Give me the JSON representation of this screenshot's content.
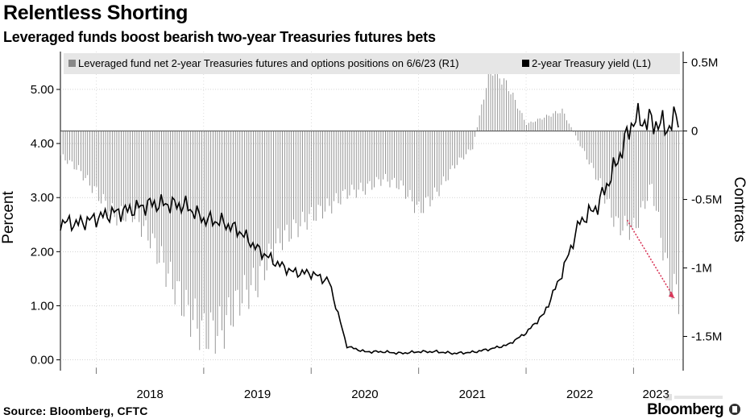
{
  "header": {
    "title": "Relentless Shorting",
    "subtitle": "Leveraged funds boost bearish two-year Treasuries futures bets"
  },
  "footer": {
    "source": "Source: Bloomberg, CFTC",
    "brand": "Bloomberg"
  },
  "colors": {
    "bars": "#8c8c8c",
    "line": "#000000",
    "arrow": "#d9385a",
    "legend_bg": "#e6e6e6",
    "grid": "#bbbbbb"
  },
  "chart_data": {
    "type": "bar+line",
    "xlabel": "",
    "x_tick_labels": [
      "2018",
      "2019",
      "2020",
      "2021",
      "2022",
      "2023"
    ],
    "x_range": [
      "2017-09",
      "2023-06"
    ],
    "y_left": {
      "label": "Percent",
      "ticks": [
        "0.00",
        "1.00",
        "2.00",
        "3.00",
        "4.00",
        "5.00"
      ],
      "range": [
        -0.2,
        5.7
      ]
    },
    "y_right": {
      "label": "Contracts",
      "ticks": [
        "-1.5M",
        "-1M",
        "-0.5M",
        "0",
        "0.5M"
      ],
      "range": [
        -1.75,
        0.58
      ]
    },
    "grid": true,
    "legend_position": "top",
    "series": [
      {
        "name": "Leveraged fund net 2-year Treasuries futures and options positions on 6/6/23 (R1)",
        "axis": "right",
        "type": "bar",
        "unit": "million contracts",
        "points": [
          [
            "2017-09",
            -0.18
          ],
          [
            "2017-11",
            -0.28
          ],
          [
            "2018-01",
            -0.45
          ],
          [
            "2018-03",
            -0.62
          ],
          [
            "2018-05",
            -0.6
          ],
          [
            "2018-07",
            -0.78
          ],
          [
            "2018-09",
            -1.05
          ],
          [
            "2018-11",
            -1.3
          ],
          [
            "2019-01",
            -1.48
          ],
          [
            "2019-03",
            -1.45
          ],
          [
            "2019-05",
            -1.22
          ],
          [
            "2019-07",
            -1.1
          ],
          [
            "2019-09",
            -0.82
          ],
          [
            "2019-11",
            -0.72
          ],
          [
            "2020-01",
            -0.62
          ],
          [
            "2020-03",
            -0.55
          ],
          [
            "2020-05",
            -0.45
          ],
          [
            "2020-07",
            -0.42
          ],
          [
            "2020-09",
            -0.35
          ],
          [
            "2020-11",
            -0.4
          ],
          [
            "2021-01",
            -0.58
          ],
          [
            "2021-03",
            -0.45
          ],
          [
            "2021-05",
            -0.25
          ],
          [
            "2021-07",
            -0.12
          ],
          [
            "2021-09",
            0.48
          ],
          [
            "2021-11",
            0.32
          ],
          [
            "2022-01",
            0.05
          ],
          [
            "2022-03",
            0.1
          ],
          [
            "2022-05",
            0.15
          ],
          [
            "2022-07",
            -0.1
          ],
          [
            "2022-09",
            -0.35
          ],
          [
            "2022-11",
            -0.68
          ],
          [
            "2023-01",
            -0.72
          ],
          [
            "2023-03",
            -0.4
          ],
          [
            "2023-05",
            -1.12
          ],
          [
            "2023-06",
            -1.2
          ]
        ]
      },
      {
        "name": "2-year Treasury yield (L1)",
        "axis": "left",
        "type": "line",
        "unit": "percent",
        "points": [
          [
            "2017-09",
            2.55
          ],
          [
            "2017-11",
            2.52
          ],
          [
            "2018-01",
            2.62
          ],
          [
            "2018-03",
            2.72
          ],
          [
            "2018-05",
            2.78
          ],
          [
            "2018-07",
            2.88
          ],
          [
            "2018-09",
            2.88
          ],
          [
            "2018-11",
            2.85
          ],
          [
            "2019-01",
            2.6
          ],
          [
            "2019-03",
            2.55
          ],
          [
            "2019-05",
            2.38
          ],
          [
            "2019-07",
            2.05
          ],
          [
            "2019-09",
            1.8
          ],
          [
            "2019-11",
            1.62
          ],
          [
            "2020-01",
            1.6
          ],
          [
            "2020-03",
            1.45
          ],
          [
            "2020-05",
            0.25
          ],
          [
            "2020-07",
            0.15
          ],
          [
            "2020-09",
            0.15
          ],
          [
            "2020-11",
            0.12
          ],
          [
            "2021-01",
            0.15
          ],
          [
            "2021-03",
            0.15
          ],
          [
            "2021-05",
            0.12
          ],
          [
            "2021-07",
            0.14
          ],
          [
            "2021-09",
            0.2
          ],
          [
            "2021-11",
            0.28
          ],
          [
            "2022-01",
            0.5
          ],
          [
            "2022-03",
            0.85
          ],
          [
            "2022-05",
            1.6
          ],
          [
            "2022-07",
            2.55
          ],
          [
            "2022-09",
            2.85
          ],
          [
            "2022-11",
            3.6
          ],
          [
            "2023-01",
            4.45
          ],
          [
            "2023-03",
            4.4
          ],
          [
            "2023-05",
            4.3
          ],
          [
            "2023-06",
            4.55
          ]
        ]
      }
    ]
  }
}
